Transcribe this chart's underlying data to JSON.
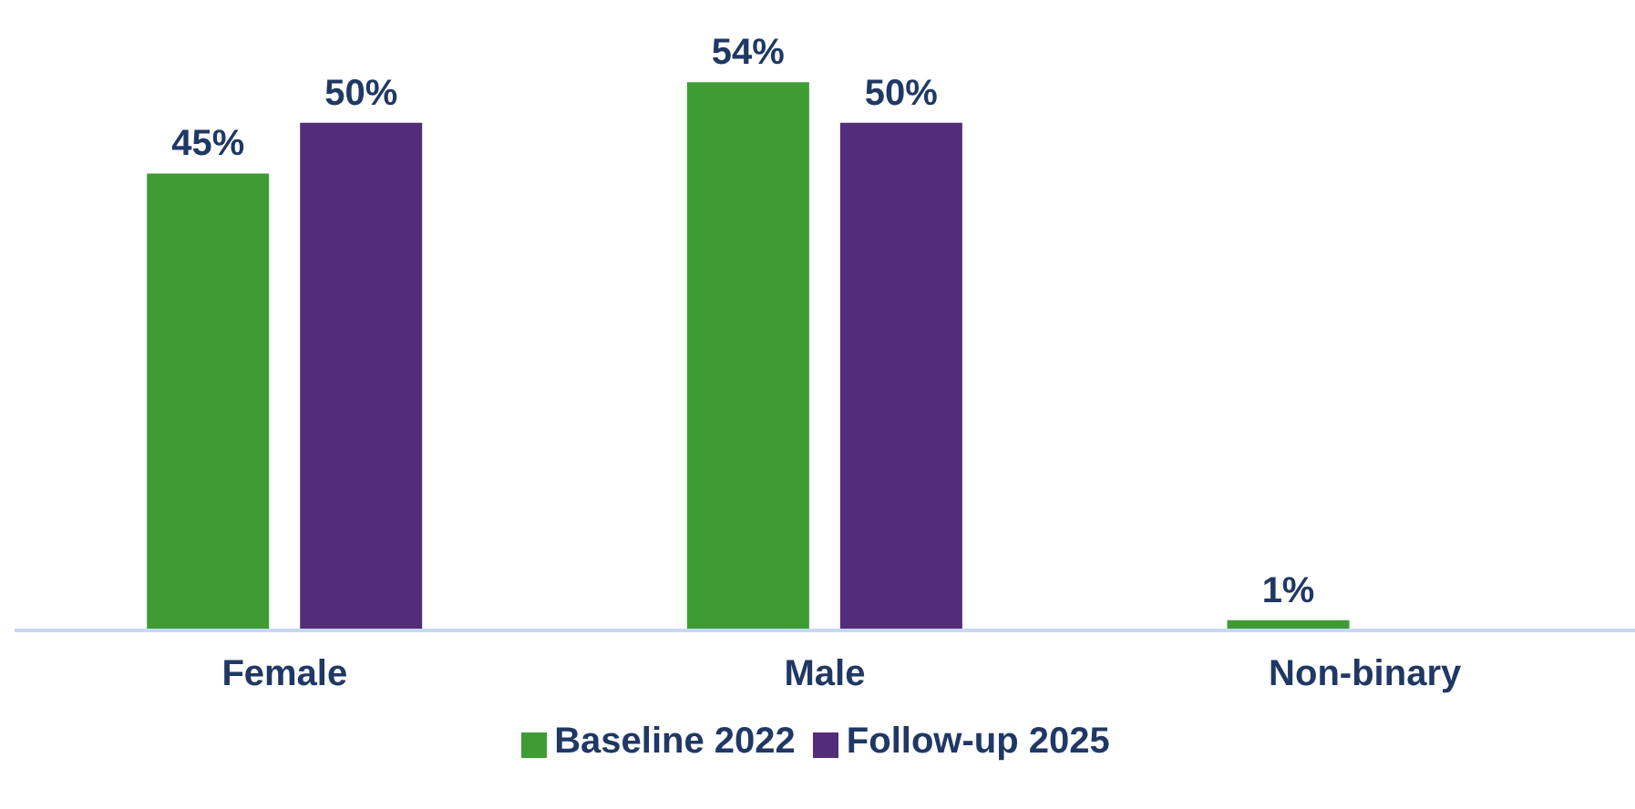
{
  "chart_data": {
    "type": "bar",
    "categories": [
      "Female",
      "Male",
      "Non-binary"
    ],
    "series": [
      {
        "name": "Baseline 2022",
        "color": "#3f9c35",
        "values": [
          45,
          54,
          1
        ],
        "value_labels": [
          "45%",
          "54%",
          "1%"
        ]
      },
      {
        "name": "Follow-up 2025",
        "color": "#532d7a",
        "values": [
          50,
          50,
          null
        ],
        "value_labels": [
          "50%",
          "50%",
          null
        ]
      }
    ],
    "legend": "bottom",
    "grid": false
  }
}
